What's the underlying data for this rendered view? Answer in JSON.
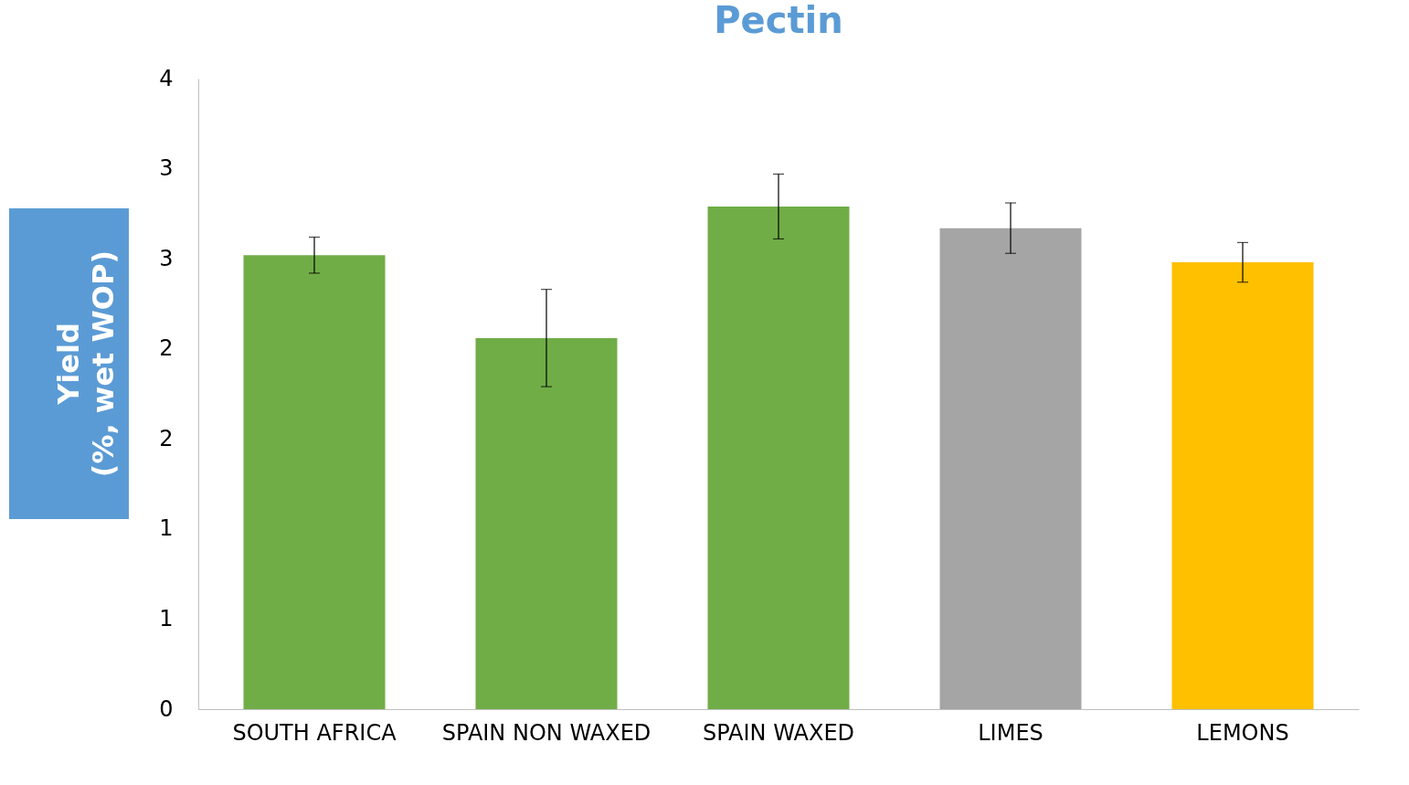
{
  "chart_data": {
    "type": "bar",
    "title": "Pectin",
    "ylabel": "Yield\n(%, wet WOP)",
    "categories": [
      "SOUTH AFRICA",
      "SPAIN NON WAXED",
      "SPAIN WAXED",
      "LIMES",
      "LEMONS"
    ],
    "values": [
      2.52,
      2.06,
      2.79,
      2.67,
      2.48
    ],
    "errors": [
      0.1,
      0.27,
      0.18,
      0.14,
      0.11
    ],
    "colors": [
      "#70ad47",
      "#70ad47",
      "#70ad47",
      "#a5a5a5",
      "#ffc000"
    ],
    "ylim": [
      0,
      3.5
    ],
    "yticks": [
      0,
      {
        "value": 0.5,
        "label": "1"
      },
      1,
      {
        "value": 1.5,
        "label": "2"
      },
      2,
      {
        "value": 2.5,
        "label": "3"
      },
      3,
      {
        "value": 3.5,
        "label": "4"
      }
    ],
    "grid": false
  }
}
